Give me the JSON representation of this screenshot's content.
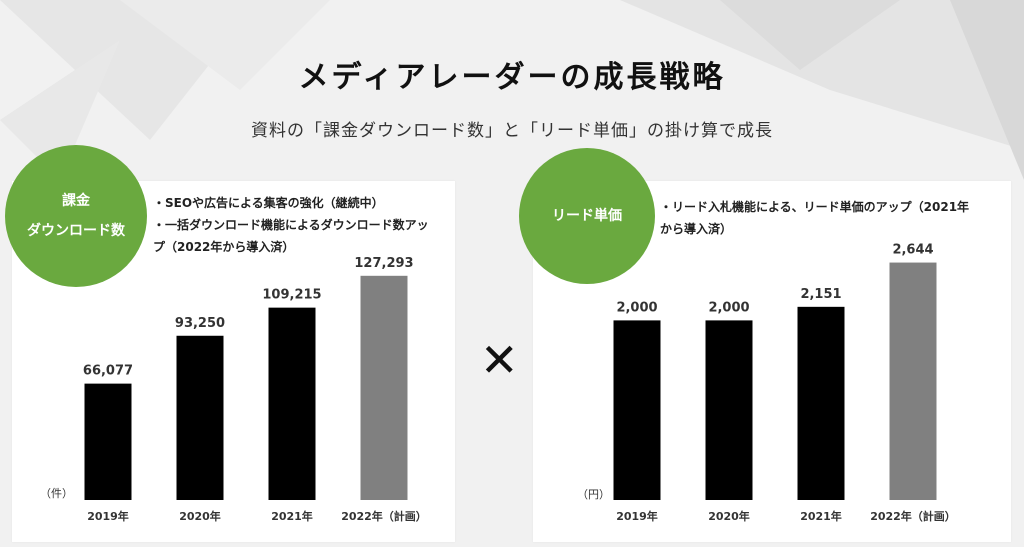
{
  "title": "メディアレーダーの成長戦略",
  "subtitle": "資料の「課金ダウンロード数」と「リード単価」の掛け算で成長",
  "operator": "✕",
  "colors": {
    "accent": "#6aa93f",
    "bar_actual": "#000000",
    "bar_plan": "#808080"
  },
  "left_panel": {
    "badge_lines": [
      "課金",
      "ダウンロード数"
    ],
    "bullets": [
      "・SEOや広告による集客の強化（継続中）",
      "・一括ダウンロード機能によるダウンロード数アッ\nプ（2022年から導入済）"
    ]
  },
  "right_panel": {
    "badge_lines": [
      "リード単価"
    ],
    "bullets": [
      "・リード入札機能による、リード単価のアップ（2021年\nから導入済）"
    ]
  },
  "chart_data": [
    {
      "type": "bar",
      "categories": [
        "2019年",
        "2020年",
        "2021年",
        "2022年（計画）"
      ],
      "values": [
        66077,
        93250,
        109215,
        127293
      ],
      "value_labels": [
        "66,077",
        "93,250",
        "109,215",
        "127,293"
      ],
      "planned": [
        false,
        false,
        false,
        true
      ],
      "unit_label": "（件）",
      "title": "",
      "xlabel": "",
      "ylabel": "",
      "ylim": [
        0,
        155000
      ],
      "grid": false
    },
    {
      "type": "bar",
      "categories": [
        "2019年",
        "2020年",
        "2021年",
        "2022年（計画）"
      ],
      "values": [
        2000,
        2000,
        2151,
        2644
      ],
      "value_labels": [
        "2,000",
        "2,000",
        "2,151",
        "2,644"
      ],
      "planned": [
        false,
        false,
        false,
        true
      ],
      "unit_label": "（円）",
      "title": "",
      "xlabel": "",
      "ylabel": "",
      "ylim": [
        0,
        3040
      ],
      "grid": false
    }
  ]
}
